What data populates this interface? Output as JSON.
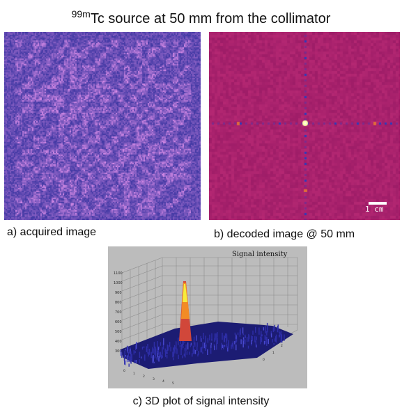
{
  "title": {
    "superscript": "99m",
    "text": "Tc source at 50 mm from the collimator"
  },
  "panel_a": {
    "caption": "a) acquired image",
    "colors": {
      "background": "#23299e",
      "bright": "#e59be4",
      "mid": "#7e57d1"
    }
  },
  "panel_b": {
    "caption": "b) decoded image @ 50 mm",
    "scale_bar_label": "1 cm",
    "colors": {
      "background": "#a9226d",
      "peak": "#ffffb0",
      "dark_pixel": "#1e2bb0"
    }
  },
  "panel_c": {
    "caption": "c) 3D plot of signal intensity",
    "plot_title": "Signal intensity",
    "colors": {
      "background": "#bcbcbc",
      "surface": "#26268c",
      "peak": "#f7ec3b"
    }
  }
}
